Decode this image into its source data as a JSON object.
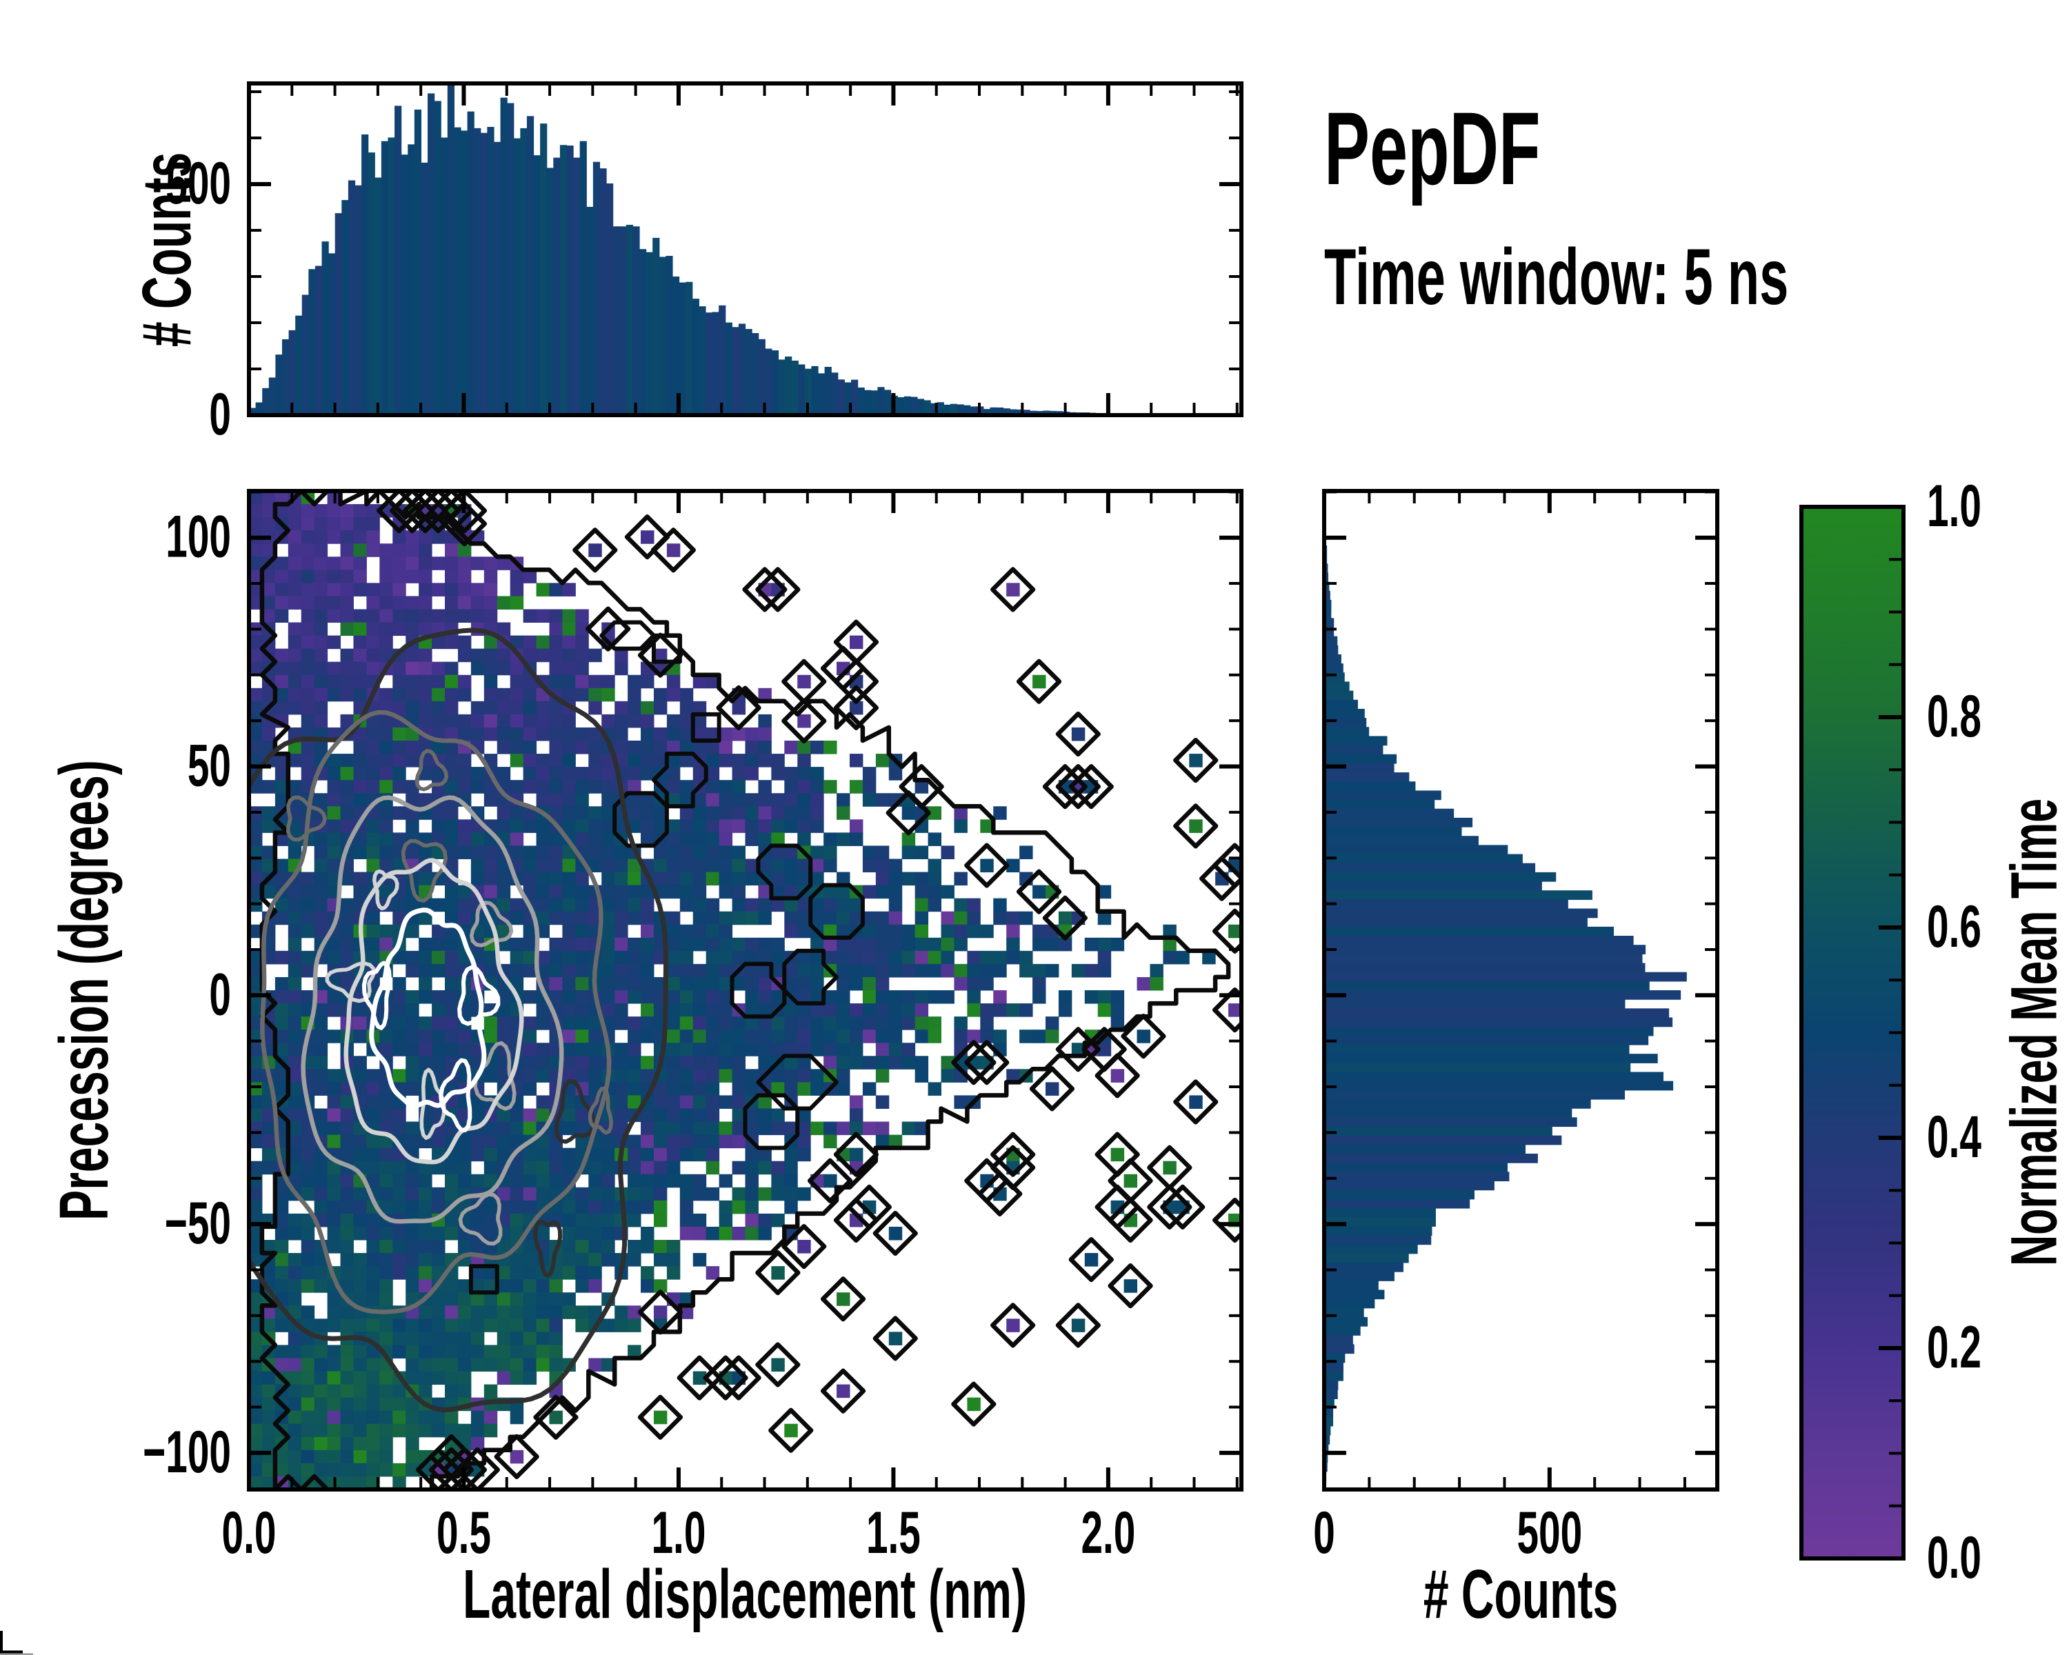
{
  "title": "PepDF",
  "subtitle": "Time window: 5 ns",
  "colors": {
    "background": "#ffffff",
    "axis": "#000000",
    "bar_base_value": 0.485,
    "colormap_stops": [
      [
        0.0,
        "#6e3a9b"
      ],
      [
        0.1,
        "#5c3897"
      ],
      [
        0.2,
        "#473390"
      ],
      [
        0.3,
        "#333381"
      ],
      [
        0.4,
        "#223a78"
      ],
      [
        0.5,
        "#0b4470"
      ],
      [
        0.6,
        "#0d5163"
      ],
      [
        0.7,
        "#14604b"
      ],
      [
        0.8,
        "#1d7035"
      ],
      [
        0.9,
        "#207d2a"
      ],
      [
        1.0,
        "#228721"
      ]
    ],
    "contour_shades": [
      "#ffffff",
      "#d4d4d4",
      "#a0a0a0",
      "#6a6a6a",
      "#2f2f2f",
      "#0a0a0a"
    ]
  },
  "seed": 20240915,
  "chart_data": [
    {
      "id": "top-marginal-histogram",
      "type": "bar",
      "orientation": "vertical",
      "ylabel": "# Counts",
      "xlim": [
        0,
        2.31
      ],
      "ylim": [
        0,
        718
      ],
      "bins": 150,
      "yticks": {
        "major": [
          {
            "v": 0,
            "label": "0"
          },
          {
            "v": 500,
            "label": "500"
          }
        ],
        "minor_step": 100
      },
      "xticks": {
        "major_step": 0.5,
        "minor_step": 0.1,
        "labels_shown": false
      },
      "jitter": 0.08,
      "profile": [
        [
          0,
          5
        ],
        [
          0.03,
          40
        ],
        [
          0.06,
          95
        ],
        [
          0.09,
          160
        ],
        [
          0.12,
          235
        ],
        [
          0.15,
          300
        ],
        [
          0.18,
          360
        ],
        [
          0.21,
          425
        ],
        [
          0.24,
          490
        ],
        [
          0.28,
          540
        ],
        [
          0.32,
          585
        ],
        [
          0.36,
          615
        ],
        [
          0.4,
          635
        ],
        [
          0.44,
          650
        ],
        [
          0.48,
          655
        ],
        [
          0.52,
          640
        ],
        [
          0.56,
          645
        ],
        [
          0.6,
          620
        ],
        [
          0.64,
          600
        ],
        [
          0.68,
          575
        ],
        [
          0.72,
          545
        ],
        [
          0.76,
          520
        ],
        [
          0.8,
          510
        ],
        [
          0.84,
          470
        ],
        [
          0.88,
          430
        ],
        [
          0.92,
          390
        ],
        [
          0.96,
          340
        ],
        [
          1.0,
          300
        ],
        [
          1.05,
          255
        ],
        [
          1.1,
          215
        ],
        [
          1.15,
          180
        ],
        [
          1.2,
          150
        ],
        [
          1.3,
          105
        ],
        [
          1.4,
          70
        ],
        [
          1.5,
          45
        ],
        [
          1.6,
          28
        ],
        [
          1.7,
          18
        ],
        [
          1.8,
          11
        ],
        [
          1.9,
          7
        ],
        [
          2.0,
          4
        ],
        [
          2.1,
          3
        ],
        [
          2.2,
          2
        ],
        [
          2.31,
          1
        ]
      ]
    },
    {
      "id": "main-heatmap",
      "type": "heatmap",
      "xlabel": "Lateral displacement (nm)",
      "ylabel": "Precession (degrees)",
      "color_field": "Normalized Mean Time",
      "xlim": [
        0,
        2.31
      ],
      "ylim": [
        -108,
        110.2
      ],
      "xticks": {
        "major": [
          {
            "v": 0,
            "label": "0.0"
          },
          {
            "v": 0.5,
            "label": "0.5"
          },
          {
            "v": 1.0,
            "label": "1.0"
          },
          {
            "v": 1.5,
            "label": "1.5"
          },
          {
            "v": 2.0,
            "label": "2.0"
          }
        ],
        "minor_step": 0.1
      },
      "yticks": {
        "major": [
          {
            "v": 100,
            "label": "100"
          },
          {
            "v": 50,
            "label": "50"
          },
          {
            "v": 0,
            "label": "0"
          },
          {
            "v": -50,
            "label": "−50"
          },
          {
            "v": -100,
            "label": "−100"
          }
        ],
        "minor_step": 10
      },
      "grid": [
        76,
        76
      ],
      "envelope_xmax_by_y": [
        [
          110,
          0.18
        ],
        [
          100,
          0.55
        ],
        [
          90,
          0.78
        ],
        [
          80,
          0.95
        ],
        [
          70,
          1.12
        ],
        [
          60,
          1.35
        ],
        [
          50,
          1.55
        ],
        [
          40,
          1.72
        ],
        [
          30,
          1.88
        ],
        [
          20,
          2.02
        ],
        [
          12,
          2.18
        ],
        [
          6,
          2.28
        ],
        [
          0,
          2.15
        ],
        [
          -10,
          1.98
        ],
        [
          -20,
          1.8
        ],
        [
          -30,
          1.62
        ],
        [
          -40,
          1.45
        ],
        [
          -50,
          1.3
        ],
        [
          -60,
          1.16
        ],
        [
          -70,
          1.02
        ],
        [
          -80,
          0.87
        ],
        [
          -90,
          0.7
        ],
        [
          -100,
          0.52
        ],
        [
          -108,
          0.38
        ]
      ],
      "occupancy_model": {
        "core_r": 0.62,
        "edge_r": 1.04,
        "core_p": 0.96,
        "iso_zones": [
          [
            1.04,
            1.45,
            0.05
          ],
          [
            1.45,
            1.9,
            0.022
          ],
          [
            1.9,
            2.4,
            0.008
          ]
        ],
        "hole_frac": 0.04,
        "block_boost": 0.82
      },
      "value_model": {
        "base": 0.47,
        "upper_slope": -0.0042,
        "upper_start": 35,
        "upper_cap": 0.24,
        "lower_slope": 0.003,
        "lower_start": -30,
        "lower_cap": 0.17,
        "noise_sd": 0.065,
        "outlier_green": [
          0.8,
          1.0
        ],
        "outlier_purple": [
          0.03,
          0.18
        ]
      },
      "contour_rings": [
        {
          "color": "#ffffff",
          "cx": 0.42,
          "cy": -4,
          "rx": 0.125,
          "ry": 21,
          "w": 7
        },
        {
          "color": "#d4d4d4",
          "cx": 0.42,
          "cy": -4,
          "rx": 0.195,
          "ry": 32,
          "w": 6.5
        },
        {
          "color": "#a0a0a0",
          "cx": 0.42,
          "cy": -4,
          "rx": 0.285,
          "ry": 46,
          "w": 6.5
        },
        {
          "color": "#6a6a6a",
          "cx": 0.42,
          "cy": -4,
          "rx": 0.4,
          "ry": 62,
          "w": 6.5
        },
        {
          "color": "#2f2f2f",
          "cx": 0.43,
          "cy": -6,
          "rx": 0.545,
          "ry": 82,
          "w": 7
        }
      ],
      "envelope_color": "#0a0a0a",
      "lakes": 12,
      "diamond_halfspan_cells": 1.55
    },
    {
      "id": "right-marginal-histogram",
      "type": "bar",
      "orientation": "horizontal",
      "xlabel": "# Counts",
      "xlim": [
        0,
        872
      ],
      "ylim": [
        -108,
        110.2
      ],
      "bins": 110,
      "xticks": {
        "major": [
          {
            "v": 0,
            "label": "0"
          },
          {
            "v": 500,
            "label": "500"
          }
        ],
        "minor_step": 100
      },
      "yticks": {
        "major_step": 50,
        "minor_step": 10,
        "labels_shown": false
      },
      "jitter": 0.08,
      "profile": [
        [
          110,
          1
        ],
        [
          100,
          4
        ],
        [
          90,
          10
        ],
        [
          80,
          22
        ],
        [
          70,
          45
        ],
        [
          60,
          95
        ],
        [
          50,
          170
        ],
        [
          40,
          280
        ],
        [
          30,
          420
        ],
        [
          20,
          560
        ],
        [
          10,
          690
        ],
        [
          5,
          740
        ],
        [
          0,
          780
        ],
        [
          -2,
          800
        ],
        [
          -5,
          790
        ],
        [
          -10,
          760
        ],
        [
          -15,
          720
        ],
        [
          -20,
          650
        ],
        [
          -30,
          520
        ],
        [
          -40,
          380
        ],
        [
          -50,
          265
        ],
        [
          -60,
          165
        ],
        [
          -70,
          95
        ],
        [
          -80,
          50
        ],
        [
          -90,
          22
        ],
        [
          -100,
          9
        ],
        [
          -108,
          3
        ]
      ]
    },
    {
      "id": "colorbar",
      "type": "colorbar",
      "label": "Normalized Mean Time",
      "range": [
        0.0,
        1.0
      ],
      "ticks": {
        "major": [
          {
            "v": 0,
            "label": "0.0"
          },
          {
            "v": 0.2,
            "label": "0.2"
          },
          {
            "v": 0.4,
            "label": "0.4"
          },
          {
            "v": 0.6,
            "label": "0.6"
          },
          {
            "v": 0.8,
            "label": "0.8"
          },
          {
            "v": 1.0,
            "label": "1.0"
          }
        ],
        "minor_step": 0.05
      }
    }
  ]
}
